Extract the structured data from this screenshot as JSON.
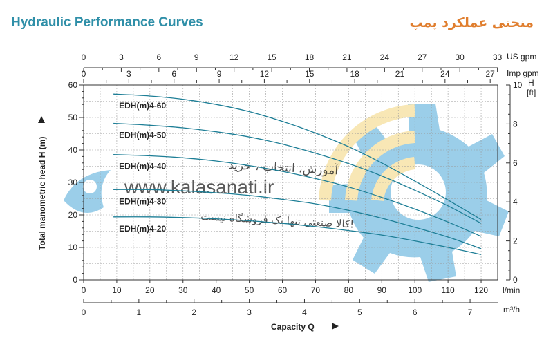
{
  "header": {
    "title_en": "Hydraulic Performance Curves",
    "title_fa": "منحنی عملکرد پمپ"
  },
  "watermark": {
    "line1": "آموزش، انتخاب ، خرید",
    "url": "www.kalasanati.ir",
    "line3": "کالا صنعتی تنها یک فروشگاه نیست!"
  },
  "chart_data": {
    "type": "line",
    "xlabel": "Capacity Q",
    "ylabel": "Total manometric head H (m)",
    "x_units": [
      "l/min",
      "m³/h",
      "US gpm",
      "Imp gpm"
    ],
    "y_units": [
      "H",
      "[ft]"
    ],
    "xlim": [
      0,
      125
    ],
    "ylim": [
      0,
      60
    ],
    "x_ticks_lmin": [
      0,
      10,
      20,
      30,
      40,
      50,
      60,
      70,
      80,
      90,
      100,
      110,
      120
    ],
    "x_ticks_m3h": [
      0,
      1,
      2,
      3,
      4,
      5,
      6,
      7
    ],
    "x_ticks_usgpm": [
      0,
      3,
      6,
      9,
      12,
      15,
      18,
      21,
      24,
      27,
      30,
      33
    ],
    "x_ticks_impgpm": [
      0,
      3,
      6,
      9,
      12,
      15,
      18,
      21,
      24,
      27
    ],
    "y_ticks_m": [
      0,
      10,
      20,
      30,
      40,
      50,
      60
    ],
    "y_ticks_ft_labels": [
      "0",
      "2",
      "4",
      "6",
      "8",
      "10"
    ],
    "grid": true,
    "series": [
      {
        "name": "EDH(m)4-60",
        "x": [
          9,
          20,
          30,
          40,
          50,
          60,
          70,
          80,
          90,
          100,
          110,
          120
        ],
        "y": [
          57.2,
          56.6,
          55.6,
          54.0,
          51.8,
          48.8,
          45.2,
          41.0,
          36.0,
          30.4,
          24.6,
          18.6
        ]
      },
      {
        "name": "EDH(m)4-50",
        "x": [
          9,
          20,
          30,
          40,
          50,
          60,
          70,
          80,
          90,
          100,
          110,
          120
        ],
        "y": [
          48.2,
          47.6,
          46.8,
          45.6,
          44.0,
          41.8,
          39.0,
          35.8,
          32.0,
          27.6,
          22.8,
          17.4
        ]
      },
      {
        "name": "EDH(m)4-40",
        "x": [
          9,
          20,
          30,
          40,
          50,
          60,
          70,
          80,
          90,
          100,
          110,
          120
        ],
        "y": [
          38.6,
          38.2,
          37.6,
          36.6,
          35.2,
          33.4,
          31.2,
          28.6,
          25.4,
          21.8,
          17.8,
          13.4
        ]
      },
      {
        "name": "EDH(m)4-30",
        "x": [
          9,
          20,
          30,
          40,
          50,
          60,
          70,
          80,
          90,
          100,
          110,
          120
        ],
        "y": [
          27.8,
          27.8,
          27.4,
          26.8,
          26.0,
          24.8,
          23.4,
          21.4,
          19.0,
          16.2,
          13.2,
          9.6
        ]
      },
      {
        "name": "EDH(m)4-20",
        "x": [
          9,
          20,
          30,
          40,
          50,
          60,
          70,
          80,
          90,
          100,
          110,
          120
        ],
        "y": [
          19.4,
          19.4,
          19.2,
          18.8,
          18.2,
          17.4,
          16.4,
          15.2,
          13.8,
          12.0,
          10.0,
          7.8
        ]
      }
    ]
  },
  "colors": {
    "curve": "#1d7e96",
    "title_en": "#2f8fa8",
    "title_fa": "#e07e2e",
    "watermark_blue": "#4aa7d8",
    "watermark_yellow": "#f3d57a"
  }
}
